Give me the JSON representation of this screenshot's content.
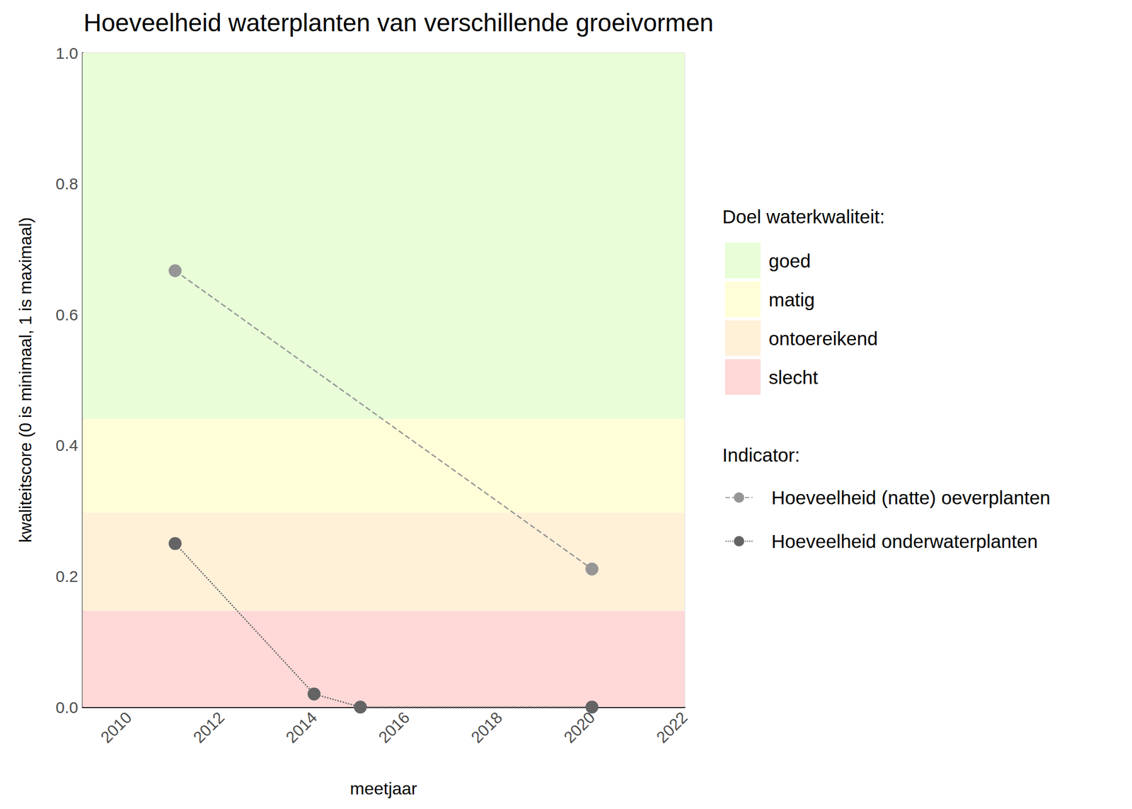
{
  "chart_data": {
    "type": "line",
    "title": "Hoeveelheid waterplanten van verschillende groeivormen",
    "x_label": "meetjaar",
    "y_label": "kwaliteitscore (0 is minimaal, 1 is maximaal)",
    "xlim": [
      2009,
      2022
    ],
    "xticks": [
      2010,
      2012,
      2014,
      2016,
      2018,
      2020,
      2022
    ],
    "ylim": [
      0,
      1
    ],
    "yticks": [
      {
        "value": 0,
        "label": "0.0"
      },
      0.2,
      0.4,
      0.6,
      0.8,
      {
        "value": 1,
        "label": "1.0"
      }
    ],
    "grid": true,
    "legend_titles": [
      "Doel waterkwaliteit:",
      "Indicator:"
    ],
    "bands": [
      {
        "name": "goed",
        "from": 0.44,
        "to": 1,
        "color": "#e8fdd8"
      },
      {
        "name": "matig",
        "from": 0.297,
        "to": 0.44,
        "color": "#fffed9"
      },
      {
        "name": "ontoereikend",
        "from": 0.147,
        "to": 0.297,
        "color": "#fff0d8"
      },
      {
        "name": "slecht",
        "from": 0,
        "to": 0.147,
        "color": "#ffd8d8"
      }
    ],
    "series": [
      {
        "name": "Hoeveelheid (natte) oeverplanten",
        "color": "#969696",
        "marker": "circle",
        "line_style": "dashed",
        "x": [
          2011,
          2020
        ],
        "values": [
          0.667,
          0.211
        ]
      },
      {
        "name": "Hoeveelheid onderwaterplanten",
        "color": "#646464",
        "marker": "circle",
        "line_style": "dotted",
        "x": [
          2011,
          2014,
          2015,
          2020
        ],
        "values": [
          0.25,
          0.02,
          0,
          0
        ]
      }
    ]
  }
}
